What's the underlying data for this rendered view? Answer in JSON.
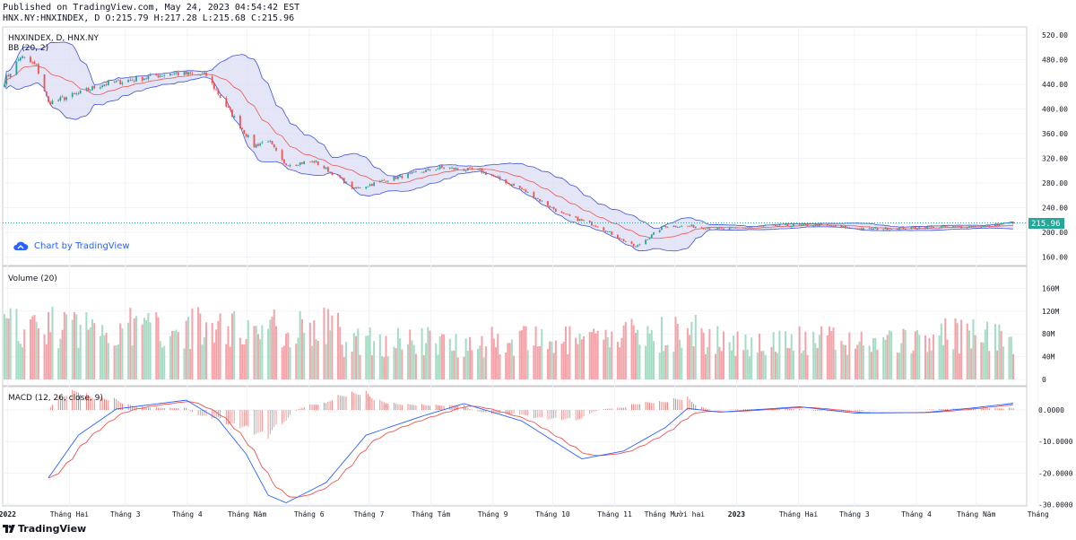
{
  "header": {
    "published": "Published on TradingView.com, May 24, 2023 04:54:42 EST",
    "ohlc": "HNX.NY:HNXINDEX, D O:215.79 H:217.28 L:215.68 C:215.96"
  },
  "legends": {
    "symbol": "HNXINDEX, D, HNX.NY",
    "bb": "BB (20, 2)",
    "volume": "Volume (20)",
    "macd": "MACD (12, 26, close, 9)"
  },
  "watermark": "Chart by TradingView",
  "brand": "TradingView",
  "last_price_label": "215.96",
  "colors": {
    "up": "#26a69a",
    "down": "#ef5350",
    "bb_fill": "#d9dcf3",
    "bb_band": "#3f51d8",
    "bb_basis": "#ef5350",
    "macd_line": "#2962ff",
    "signal_line": "#ef5350",
    "vol_up": "#a5dcc3",
    "vol_down": "#f5a3a8",
    "grid": "#f0f3fa",
    "border": "#cccccc",
    "last_price": "#26a69a"
  },
  "chart_data": [
    {
      "type": "candlestick",
      "title": "HNXINDEX, D, HNX.NY",
      "indicator": "BB (20, 2)",
      "ylim": [
        150,
        530
      ],
      "y_ticks": [
        "520.00",
        "480.00",
        "440.00",
        "400.00",
        "360.00",
        "320.00",
        "280.00",
        "240.00",
        "200.00",
        "160.00"
      ],
      "last_price": 215.96,
      "x_ticks": [
        "2022",
        "Tháng Hai",
        "Tháng 3",
        "Tháng 4",
        "Tháng Năm",
        "Tháng 6",
        "Tháng 7",
        "Tháng Tám",
        "Tháng 9",
        "Tháng 10",
        "Tháng 11",
        "Tháng Mười hai",
        "2023",
        "Tháng Hai",
        "Tháng 3",
        "Tháng 4",
        "Tháng Năm",
        "Tháng"
      ],
      "price_trend": [
        {
          "x": "2022-01-04",
          "y": 445
        },
        {
          "x": "2022-01-12",
          "y": 485
        },
        {
          "x": "2022-01-20",
          "y": 470
        },
        {
          "x": "2022-01-26",
          "y": 410
        },
        {
          "x": "2022-02-10",
          "y": 425
        },
        {
          "x": "2022-02-22",
          "y": 440
        },
        {
          "x": "2022-03-10",
          "y": 448
        },
        {
          "x": "2022-03-28",
          "y": 458
        },
        {
          "x": "2022-04-15",
          "y": 455
        },
        {
          "x": "2022-04-26",
          "y": 400
        },
        {
          "x": "2022-05-09",
          "y": 340
        },
        {
          "x": "2022-05-16",
          "y": 350
        },
        {
          "x": "2022-05-24",
          "y": 310
        },
        {
          "x": "2022-06-08",
          "y": 315
        },
        {
          "x": "2022-06-20",
          "y": 290
        },
        {
          "x": "2022-06-28",
          "y": 270
        },
        {
          "x": "2022-07-14",
          "y": 285
        },
        {
          "x": "2022-08-10",
          "y": 305
        },
        {
          "x": "2022-08-30",
          "y": 300
        },
        {
          "x": "2022-09-20",
          "y": 270
        },
        {
          "x": "2022-10-10",
          "y": 230
        },
        {
          "x": "2022-10-28",
          "y": 210
        },
        {
          "x": "2022-11-16",
          "y": 176
        },
        {
          "x": "2022-11-30",
          "y": 210
        },
        {
          "x": "2022-12-14",
          "y": 210
        },
        {
          "x": "2022-12-28",
          "y": 205
        },
        {
          "x": "2023-01-20",
          "y": 210
        },
        {
          "x": "2023-02-15",
          "y": 212
        },
        {
          "x": "2023-03-10",
          "y": 205
        },
        {
          "x": "2023-04-10",
          "y": 208
        },
        {
          "x": "2023-05-10",
          "y": 210
        },
        {
          "x": "2023-05-24",
          "y": 215.96
        }
      ]
    },
    {
      "type": "bar",
      "title": "Volume (20)",
      "ylim": [
        0,
        170
      ],
      "y_unit": "M",
      "y_ticks": [
        "160M",
        "120M",
        "80M",
        "40M",
        "0"
      ]
    },
    {
      "type": "line",
      "title": "MACD (12, 26, close, 9)",
      "ylim": [
        -31,
        4
      ],
      "y_ticks": [
        "0.0000",
        "-10.0000",
        "-20.0000",
        "-30.0000"
      ],
      "macd_trend": [
        {
          "x": "2022-01-26",
          "y": -21.5
        },
        {
          "x": "2022-02-10",
          "y": -8
        },
        {
          "x": "2022-03-01",
          "y": 0.3
        },
        {
          "x": "2022-04-05",
          "y": 3.1
        },
        {
          "x": "2022-04-21",
          "y": -3
        },
        {
          "x": "2022-05-05",
          "y": -14
        },
        {
          "x": "2022-05-16",
          "y": -27
        },
        {
          "x": "2022-05-25",
          "y": -29.4
        },
        {
          "x": "2022-06-14",
          "y": -23
        },
        {
          "x": "2022-07-04",
          "y": -8
        },
        {
          "x": "2022-08-01",
          "y": -2
        },
        {
          "x": "2022-08-22",
          "y": 2
        },
        {
          "x": "2022-09-20",
          "y": -3.5
        },
        {
          "x": "2022-10-20",
          "y": -15.5
        },
        {
          "x": "2022-11-10",
          "y": -13
        },
        {
          "x": "2022-12-01",
          "y": -5.5
        },
        {
          "x": "2022-12-12",
          "y": 0.5
        },
        {
          "x": "2022-12-28",
          "y": -0.7
        },
        {
          "x": "2023-02-06",
          "y": 1
        },
        {
          "x": "2023-03-06",
          "y": -1
        },
        {
          "x": "2023-04-10",
          "y": -0.8
        },
        {
          "x": "2023-05-05",
          "y": 0.7
        },
        {
          "x": "2023-05-24",
          "y": 2.1
        }
      ]
    }
  ]
}
